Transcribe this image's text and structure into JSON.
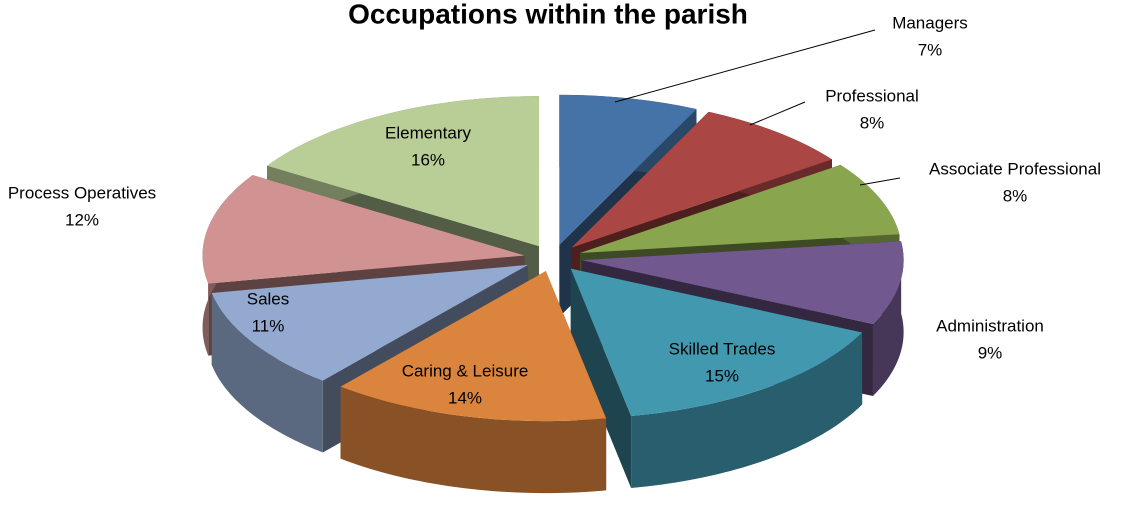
{
  "chart_data": {
    "type": "pie",
    "title": "Occupations within the parish",
    "categories": [
      "Managers",
      "Professional",
      "Associate Professional",
      "Administration",
      "Skilled Trades",
      "Caring & Leisure",
      "Sales",
      "Process Operatives",
      "Elementary"
    ],
    "values": [
      7,
      8,
      8,
      9,
      15,
      14,
      11,
      12,
      16
    ],
    "value_labels": [
      "7%",
      "8%",
      "8%",
      "9%",
      "15%",
      "14%",
      "11%",
      "12%",
      "16%"
    ],
    "colors": [
      "#4572a7",
      "#aa4643",
      "#89a54e",
      "#71588f",
      "#4198af",
      "#db843d",
      "#93a9cf",
      "#d19392",
      "#b9cd96"
    ],
    "exploded": true,
    "three_d": true
  }
}
